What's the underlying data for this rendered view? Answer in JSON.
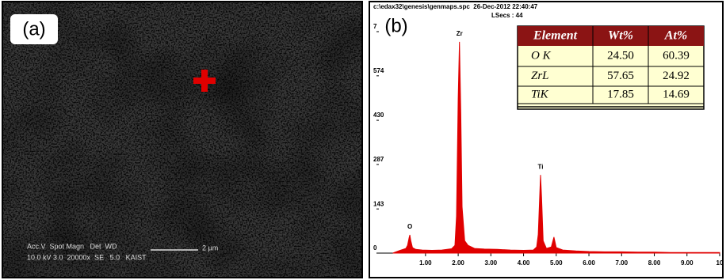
{
  "panel_a": {
    "label": "(a)",
    "info_header": "Acc.V  Spot Magn   Det  WD",
    "info_values": "10.0 kV 3.0  20000x  SE   5.0   KAIST",
    "scale_bar": "2 μm"
  },
  "panel_b": {
    "label": "(b)",
    "file_info": "c:\\edax32\\genesis\\genmaps.spc  26-Dec-2012 22:40:47",
    "lsecs": "LSecs : 44"
  },
  "table": {
    "header": [
      "Element",
      "Wt%",
      "At%"
    ],
    "rows": [
      [
        "O K",
        "24.50",
        "60.39"
      ],
      [
        "ZrL",
        "57.65",
        "24.92"
      ],
      [
        "TiK",
        "17.85",
        "14.69"
      ]
    ]
  },
  "chart_data": {
    "type": "area",
    "color": "#e00000",
    "x": [
      0.0,
      0.2,
      0.4,
      0.45,
      0.5,
      0.52,
      0.55,
      0.6,
      0.7,
      0.9,
      1.2,
      1.5,
      1.8,
      1.9,
      1.95,
      2.0,
      2.04,
      2.08,
      2.12,
      2.2,
      2.3,
      2.5,
      2.8,
      3.2,
      3.6,
      4.0,
      4.3,
      4.4,
      4.45,
      4.5,
      4.52,
      4.55,
      4.6,
      4.7,
      4.85,
      4.93,
      5.0,
      5.2,
      5.6,
      6.0,
      6.5,
      7.0,
      7.5,
      8.0,
      8.5,
      9.0,
      9.5,
      10.0
    ],
    "values": [
      0,
      8,
      15,
      25,
      50,
      59,
      40,
      18,
      12,
      10,
      9,
      10,
      14,
      25,
      120,
      500,
      684,
      450,
      150,
      40,
      25,
      15,
      13,
      12,
      10,
      9,
      10,
      20,
      60,
      200,
      253,
      180,
      40,
      15,
      20,
      52,
      18,
      10,
      7,
      5,
      4,
      4,
      3,
      3,
      2,
      2,
      2,
      2
    ],
    "annotations": [
      "O",
      "Zr",
      "Ti"
    ],
    "xlim": [
      -0.5,
      10
    ],
    "ylim": [
      0,
      717
    ],
    "xticks": [
      {
        "value": 1,
        "label": "1.00"
      },
      {
        "value": 2,
        "label": "2.00"
      },
      {
        "value": 3,
        "label": "3.00"
      },
      {
        "value": 4,
        "label": "4.00"
      },
      {
        "value": 5,
        "label": "5.00"
      },
      {
        "value": 6,
        "label": "6.00"
      },
      {
        "value": 7,
        "label": "7.00"
      },
      {
        "value": 8,
        "label": "8.00"
      },
      {
        "value": 9,
        "label": "9.00"
      },
      10
    ],
    "yticks": [
      0,
      143,
      287,
      430,
      574,
      {
        "value": 717,
        "label": "7"
      }
    ],
    "grid": false
  }
}
